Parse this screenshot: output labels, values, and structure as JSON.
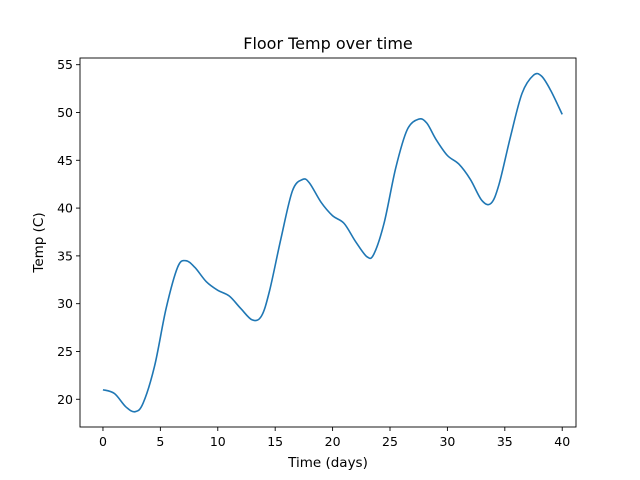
{
  "chart_data": {
    "type": "line",
    "title": "Floor Temp over time",
    "xlabel": "Time (days)",
    "ylabel": "Temp (C)",
    "xlim": [
      -2,
      41.2
    ],
    "ylim": [
      17.1,
      55.7
    ],
    "xticks": [
      0,
      5,
      10,
      15,
      20,
      25,
      30,
      35,
      40
    ],
    "yticks": [
      20,
      25,
      30,
      35,
      40,
      45,
      50,
      55
    ],
    "grid": false,
    "line_color": "#1f77b4",
    "series": [
      {
        "x": [
          0,
          1,
          2,
          2.8,
          3.5,
          4.5,
          5.5,
          6.5,
          7.2,
          8,
          9,
          10,
          11,
          12,
          13,
          13.8,
          14.5,
          15.5,
          16.5,
          17.4,
          18,
          19,
          20,
          21,
          22,
          23,
          23.6,
          24.5,
          25.5,
          26.5,
          27.5,
          28.2,
          29,
          30,
          31,
          32,
          33,
          33.8,
          34.5,
          35.5,
          36.5,
          37.5,
          38.2,
          39,
          40
        ],
        "y": [
          21.0,
          20.6,
          19.2,
          18.7,
          19.6,
          23.5,
          29.5,
          33.8,
          34.5,
          33.8,
          32.3,
          31.4,
          30.8,
          29.5,
          28.3,
          28.7,
          31.3,
          36.8,
          41.8,
          43.0,
          42.6,
          40.6,
          39.2,
          38.4,
          36.5,
          34.9,
          35.2,
          38.5,
          44.2,
          48.2,
          49.3,
          48.9,
          47.2,
          45.5,
          44.6,
          43.0,
          40.8,
          40.5,
          42.5,
          47.5,
          52.0,
          53.9,
          53.8,
          52.3,
          49.8
        ]
      }
    ]
  }
}
